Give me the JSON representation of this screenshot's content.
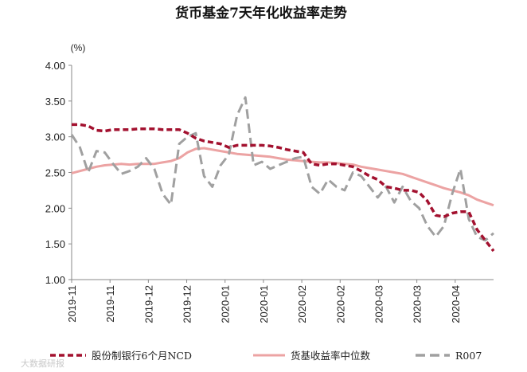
{
  "chart_data": {
    "type": "line",
    "title": "货币基金7天年化收益率走势",
    "ylabel": "(%)",
    "ylim": [
      1.0,
      4.0
    ],
    "yticks": [
      "1.00",
      "1.50",
      "2.00",
      "2.50",
      "3.00",
      "3.50",
      "4.00"
    ],
    "xticks": [
      "2019-11",
      "2019-11",
      "2019-12",
      "2019-12",
      "2020-01",
      "2020-01",
      "2020-02",
      "2020-02",
      "2020-03",
      "2020-03",
      "2020-04"
    ],
    "grid": false,
    "legend_position": "bottom",
    "series": [
      {
        "name": "股份制银行6个月NCD",
        "color": "#a3112f",
        "style": "dashed-bold",
        "values": [
          3.17,
          3.17,
          3.15,
          3.09,
          3.08,
          3.1,
          3.1,
          3.1,
          3.11,
          3.11,
          3.11,
          3.1,
          3.1,
          3.1,
          3.05,
          2.98,
          2.94,
          2.92,
          2.9,
          2.85,
          2.88,
          2.88,
          2.88,
          2.88,
          2.87,
          2.85,
          2.82,
          2.8,
          2.78,
          2.62,
          2.6,
          2.62,
          2.62,
          2.6,
          2.58,
          2.52,
          2.45,
          2.4,
          2.3,
          2.28,
          2.25,
          2.25,
          2.22,
          2.1,
          1.9,
          1.88,
          1.93,
          1.95,
          1.95,
          1.7,
          1.55,
          1.4
        ]
      },
      {
        "name": "货基收益率中位数",
        "color": "#eca3a3",
        "style": "solid",
        "values": [
          2.49,
          2.52,
          2.55,
          2.58,
          2.6,
          2.61,
          2.62,
          2.61,
          2.62,
          2.62,
          2.62,
          2.64,
          2.66,
          2.7,
          2.78,
          2.83,
          2.84,
          2.82,
          2.8,
          2.78,
          2.76,
          2.75,
          2.74,
          2.73,
          2.72,
          2.7,
          2.68,
          2.67,
          2.66,
          2.65,
          2.64,
          2.64,
          2.63,
          2.62,
          2.61,
          2.58,
          2.56,
          2.54,
          2.52,
          2.5,
          2.48,
          2.44,
          2.4,
          2.36,
          2.32,
          2.28,
          2.25,
          2.22,
          2.18,
          2.12,
          2.08,
          2.04
        ]
      },
      {
        "name": "R007",
        "color": "#a0a0a0",
        "style": "dashed-long",
        "values": [
          3.03,
          2.85,
          2.5,
          2.8,
          2.78,
          2.62,
          2.48,
          2.52,
          2.58,
          2.7,
          2.55,
          2.2,
          2.05,
          2.9,
          3.0,
          3.05,
          2.45,
          2.3,
          2.6,
          2.75,
          3.3,
          3.55,
          2.6,
          2.65,
          2.55,
          2.6,
          2.65,
          2.7,
          2.72,
          2.3,
          2.2,
          2.4,
          2.3,
          2.25,
          2.5,
          2.45,
          2.3,
          2.15,
          2.3,
          2.08,
          2.3,
          2.1,
          2.0,
          1.75,
          1.6,
          1.75,
          2.2,
          2.55,
          1.85,
          1.6,
          1.55,
          1.65
        ]
      }
    ]
  },
  "watermark": "大数据研报"
}
